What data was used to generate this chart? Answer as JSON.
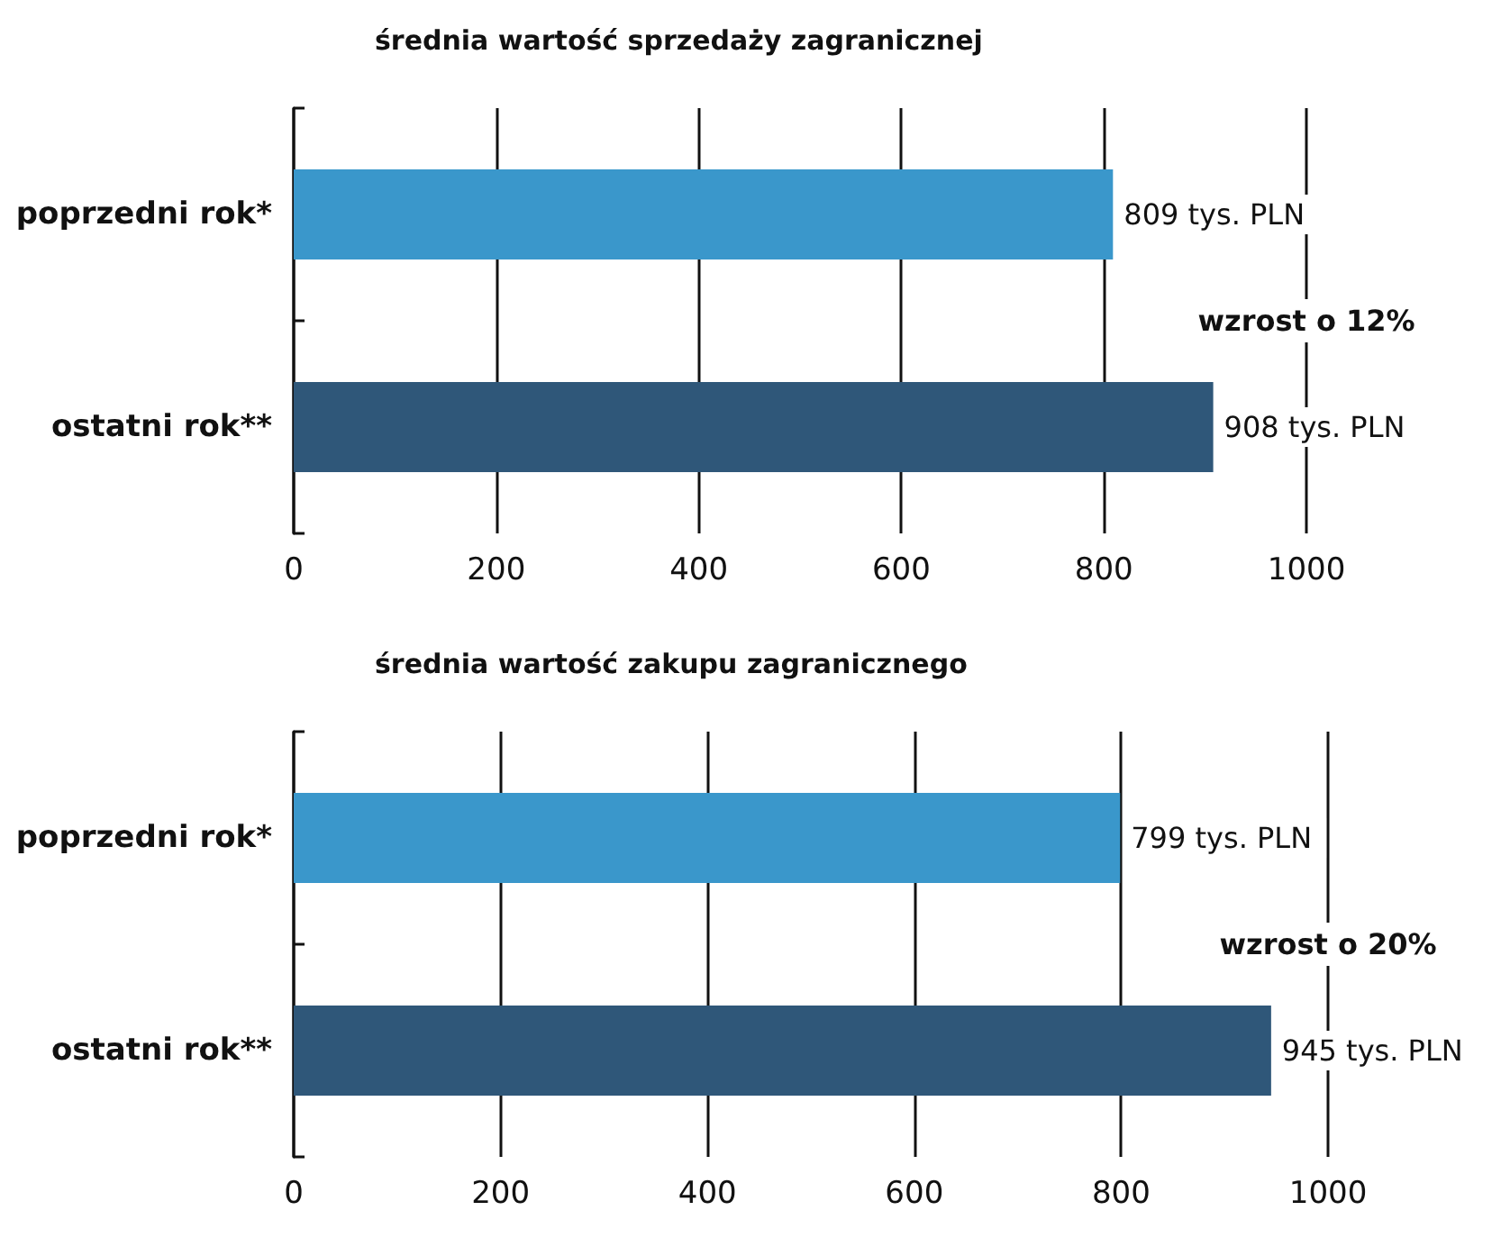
{
  "chart_data": [
    {
      "type": "bar",
      "orientation": "horizontal",
      "title": "średnia wartość sprzedaży zagranicznej",
      "categories": [
        "poprzedni rok*",
        "ostatni rok**"
      ],
      "values": [
        809,
        908
      ],
      "colors": [
        "#3a97cb",
        "#2f5779"
      ],
      "value_labels": [
        "809 tys. PLN",
        "908 tys. PLN"
      ],
      "xlim": [
        0,
        1000
      ],
      "xticks": [
        0,
        200,
        400,
        600,
        800,
        1000
      ],
      "grid": "x",
      "annotations": [
        "wzrost o 12%"
      ]
    },
    {
      "type": "bar",
      "orientation": "horizontal",
      "title": "średnia wartość zakupu zagranicznego",
      "categories": [
        "poprzedni rok*",
        "ostatni rok**"
      ],
      "values": [
        799,
        945
      ],
      "colors": [
        "#3a97cb",
        "#2f5779"
      ],
      "value_labels": [
        "799 tys. PLN",
        "945 tys. PLN"
      ],
      "xlim": [
        0,
        1000
      ],
      "xticks": [
        0,
        200,
        400,
        600,
        800,
        1000
      ],
      "grid": "x",
      "annotations": [
        "wzrost o 20%"
      ]
    }
  ]
}
